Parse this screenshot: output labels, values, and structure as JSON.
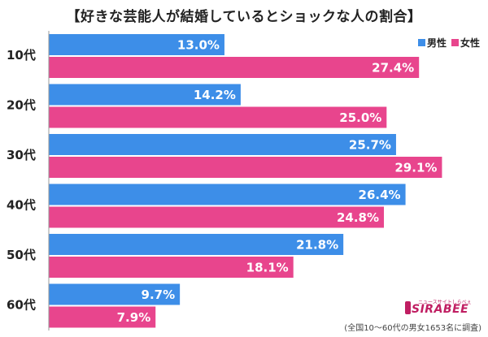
{
  "title": "【好きな芸能人が結婚しているとショックな人の割合】",
  "legend": [
    {
      "label": "男性",
      "color": "#3d8ee8"
    },
    {
      "label": "女性",
      "color": "#e8458d"
    }
  ],
  "chart_data": {
    "type": "bar",
    "orientation": "horizontal",
    "categories": [
      "10代",
      "20代",
      "30代",
      "40代",
      "50代",
      "60代"
    ],
    "series": [
      {
        "name": "男性",
        "values": [
          13.0,
          14.2,
          25.7,
          26.4,
          21.8,
          9.7
        ],
        "labels": [
          "13.0%",
          "14.2%",
          "25.7%",
          "26.4%",
          "21.8%",
          "9.7%"
        ],
        "color": "#3d8ee8"
      },
      {
        "name": "女性",
        "values": [
          27.4,
          25.0,
          29.1,
          24.8,
          18.1,
          7.9
        ],
        "labels": [
          "27.4%",
          "25.0%",
          "29.1%",
          "24.8%",
          "18.1%",
          "7.9%"
        ],
        "color": "#e8458d"
      }
    ],
    "xlim": [
      0,
      31
    ],
    "grid": false,
    "legend_position": "top-right"
  },
  "logo": {
    "word": "SIRABEE",
    "tagline": "ニュースサイトしらべぇ"
  },
  "source": "(全国10～60代の男女1653名に調査)"
}
